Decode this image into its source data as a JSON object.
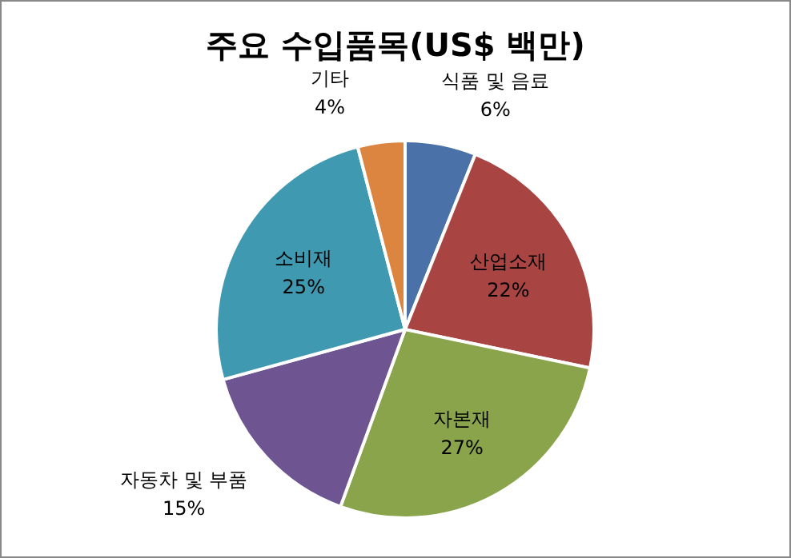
{
  "chart_data": {
    "type": "pie",
    "title": "주요 수입품목(US$ 백만)",
    "categories": [
      "식품 및 음료",
      "산업소재",
      "자본재",
      "자동차 및 부품",
      "소비재",
      "기타"
    ],
    "values": [
      6,
      22,
      27,
      15,
      25,
      4
    ],
    "value_labels": [
      "6%",
      "22%",
      "27%",
      "15%",
      "25%",
      "4%"
    ],
    "colors": [
      "#4a72a8",
      "#a84442",
      "#89a44a",
      "#6e5490",
      "#3f99b0",
      "#dc8540"
    ],
    "legend": false
  }
}
